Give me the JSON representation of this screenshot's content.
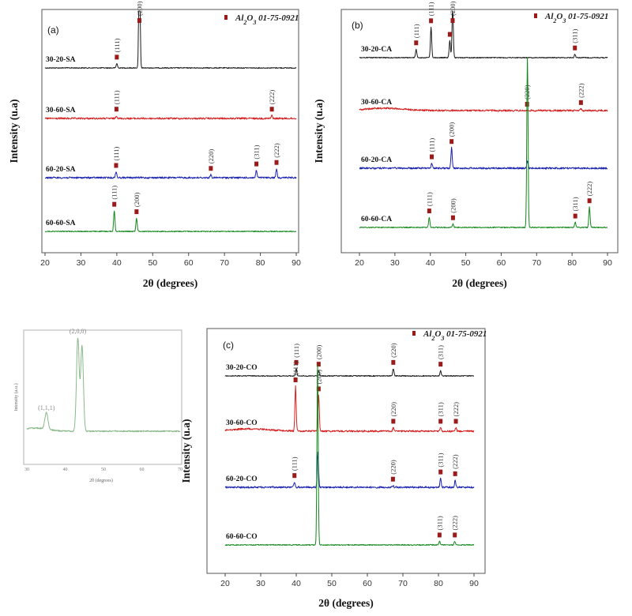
{
  "colors": {
    "marker": "#9b1b1b",
    "black": "#1a1a1a",
    "red": "#d62020",
    "blue": "#1a22b0",
    "green": "#13881b",
    "inset": "#8ab98a"
  },
  "legend_text": "Al2O3 01-75-0921",
  "chart_data": [
    {
      "panel": "(a)",
      "type": "line",
      "xlabel": "2θ (degrees)",
      "ylabel": "Intensity (u.a)",
      "xlim": [
        20,
        90
      ],
      "xticks": [
        "20",
        "30",
        "40",
        "50",
        "60",
        "70",
        "80",
        "90"
      ],
      "legend": "Al2O3 01-75-0921",
      "series": [
        {
          "name": "30-20-SA",
          "color": "black",
          "peaks": [
            {
              "x": 40.0,
              "label": "(111)",
              "h": 0.03,
              "marker": true
            },
            {
              "x": 46.3,
              "label": "(200)",
              "h": 1.0,
              "marker": true
            }
          ]
        },
        {
          "name": "30-60-SA",
          "color": "red",
          "peaks": [
            {
              "x": 39.9,
              "label": "(111)",
              "h": 0.02,
              "marker": true
            },
            {
              "x": 83.2,
              "label": "(222)",
              "h": 0.02,
              "marker": true
            }
          ]
        },
        {
          "name": "60-20-SA",
          "color": "blue",
          "peaks": [
            {
              "x": 39.8,
              "label": "(111)",
              "h": 0.04,
              "marker": true
            },
            {
              "x": 66.2,
              "label": "(220)",
              "h": 0.02,
              "marker": true
            },
            {
              "x": 78.9,
              "label": "(311)",
              "h": 0.05,
              "marker": true
            },
            {
              "x": 84.5,
              "label": "(222)",
              "h": 0.06,
              "marker": true
            }
          ]
        },
        {
          "name": "60-60-SA",
          "color": "green",
          "peaks": [
            {
              "x": 39.3,
              "label": "(111)",
              "h": 0.14,
              "marker": true
            },
            {
              "x": 45.5,
              "label": "(200)",
              "h": 0.09,
              "marker": true
            }
          ]
        }
      ]
    },
    {
      "panel": "(b)",
      "type": "line",
      "xlabel": "2θ (degrees)",
      "ylabel": "Intensity (u.a)",
      "xlim": [
        20,
        90
      ],
      "xticks": [
        "20",
        "30",
        "40",
        "50",
        "60",
        "70",
        "80",
        "90"
      ],
      "legend": "Al2O3 01-75-0921",
      "series": [
        {
          "name": "30-20-CA",
          "color": "black",
          "peaks": [
            {
              "x": 36.0,
              "label": "(111)",
              "h": 0.05,
              "marker": true
            },
            {
              "x": 40.2,
              "label": "(111)",
              "h": 0.18,
              "marker": true
            },
            {
              "x": 45.5,
              "label": "",
              "h": 0.1,
              "marker": true
            },
            {
              "x": 46.3,
              "label": "(200)",
              "h": 0.3,
              "marker": true
            },
            {
              "x": 80.8,
              "label": "(311)",
              "h": 0.02,
              "marker": true
            }
          ]
        },
        {
          "name": "30-60-CA",
          "color": "red",
          "peaks": [
            {
              "x": 67.3,
              "label": "(220)",
              "h": 0.0,
              "marker": true
            },
            {
              "x": 82.5,
              "label": "(222)",
              "h": 0.01,
              "marker": true
            }
          ]
        },
        {
          "name": "60-20-CA",
          "color": "blue",
          "peaks": [
            {
              "x": 40.4,
              "label": "(111)",
              "h": 0.03,
              "marker": true
            },
            {
              "x": 46.0,
              "label": "(200)",
              "h": 0.12,
              "marker": true
            },
            {
              "x": 67.4,
              "label": "",
              "h": 0.04,
              "marker": false
            }
          ]
        },
        {
          "name": "60-60-CA",
          "color": "green",
          "peaks": [
            {
              "x": 39.7,
              "label": "(111)",
              "h": 0.06,
              "marker": true
            },
            {
              "x": 46.4,
              "label": "(200)",
              "h": 0.02,
              "marker": true
            },
            {
              "x": 67.4,
              "label": "",
              "h": 1.0,
              "marker": false
            },
            {
              "x": 80.9,
              "label": "(311)",
              "h": 0.03,
              "marker": true
            },
            {
              "x": 84.9,
              "label": "(222)",
              "h": 0.12,
              "marker": true
            }
          ]
        }
      ]
    },
    {
      "panel": "(c)",
      "type": "line",
      "xlabel": "2θ (degrees)",
      "ylabel": "Intensity (u.a)",
      "xlim": [
        20,
        90
      ],
      "xticks": [
        "20",
        "30",
        "40",
        "50",
        "60",
        "70",
        "80",
        "90"
      ],
      "legend": "Al2O3 01-75-0921",
      "series": [
        {
          "name": "30-20-CO",
          "color": "black",
          "peaks": [
            {
              "x": 40.0,
              "label": "(111)",
              "h": 0.04,
              "marker": true
            },
            {
              "x": 46.3,
              "label": "(200)",
              "h": 0.03,
              "marker": true
            },
            {
              "x": 67.3,
              "label": "(220)",
              "h": 0.04,
              "marker": true
            },
            {
              "x": 80.6,
              "label": "(311)",
              "h": 0.03,
              "marker": true
            }
          ]
        },
        {
          "name": "30-60-CO",
          "color": "red",
          "peaks": [
            {
              "x": 39.8,
              "label": "(111)",
              "h": 0.25,
              "marker": true
            },
            {
              "x": 46.3,
              "label": "(200)",
              "h": 0.2,
              "marker": true
            },
            {
              "x": 67.3,
              "label": "(220)",
              "h": 0.02,
              "marker": true
            },
            {
              "x": 80.6,
              "label": "(311)",
              "h": 0.02,
              "marker": true
            },
            {
              "x": 84.9,
              "label": "(222)",
              "h": 0.02,
              "marker": true
            }
          ]
        },
        {
          "name": "60-20-CO",
          "color": "blue",
          "peaks": [
            {
              "x": 39.5,
              "label": "(111)",
              "h": 0.03,
              "marker": true
            },
            {
              "x": 46.1,
              "label": "",
              "h": 0.2,
              "marker": false
            },
            {
              "x": 67.2,
              "label": "(220)",
              "h": 0.01,
              "marker": true
            },
            {
              "x": 80.6,
              "label": "(311)",
              "h": 0.05,
              "marker": true
            },
            {
              "x": 84.7,
              "label": "(222)",
              "h": 0.04,
              "marker": true
            }
          ]
        },
        {
          "name": "60-60-CO",
          "color": "green",
          "peaks": [
            {
              "x": 46.0,
              "label": "",
              "h": 1.0,
              "marker": false
            },
            {
              "x": 80.3,
              "label": "(311)",
              "h": 0.02,
              "marker": true
            },
            {
              "x": 84.6,
              "label": "(222)",
              "h": 0.02,
              "marker": true
            }
          ]
        }
      ]
    },
    {
      "panel": "inset",
      "type": "line",
      "xlabel": "2θ (degrees)",
      "ylabel": "Intensity (a.u.)",
      "xlim": [
        30,
        70
      ],
      "xticks": [
        "30",
        "40",
        "50",
        "60",
        "70"
      ],
      "series": [
        {
          "name": "",
          "color": "inset",
          "peaks": [
            {
              "x": 35.1,
              "label": "(1,1,1)",
              "h": 0.18
            },
            {
              "x": 43.3,
              "label": "(2,0,0)",
              "h": 1.0
            },
            {
              "x": 44.4,
              "label": "",
              "h": 0.92
            }
          ]
        }
      ]
    }
  ]
}
